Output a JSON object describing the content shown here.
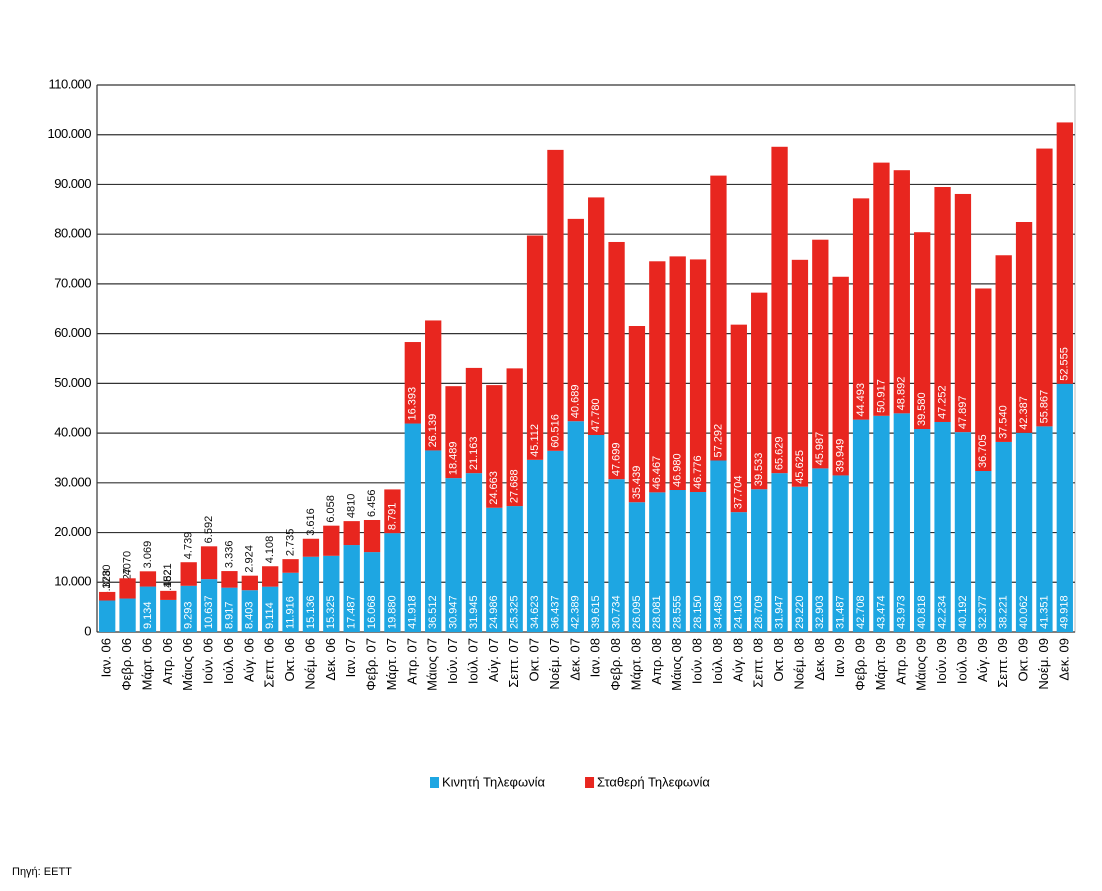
{
  "chart_data": {
    "type": "stacked_bar",
    "categories": [
      "Ιαν. 06",
      "Φεβρ. 06",
      "Μάρτ. 06",
      "Απρ. 06",
      "Μάιος 06",
      "Ιούν. 06",
      "Ιούλ. 06",
      "Αύγ. 06",
      "Σεπτ. 06",
      "Οκτ. 06",
      "Νοέμ. 06",
      "Δεκ. 06",
      "Ιαν. 07",
      "Φεβρ. 07",
      "Μάρτ. 07",
      "Απρ. 07",
      "Μάιος 07",
      "Ιούν. 07",
      "Ιούλ. 07",
      "Αύγ. 07",
      "Σεπτ. 07",
      "Οκτ. 07",
      "Νοέμ. 07",
      "Δεκ. 07",
      "Ιαν. 08",
      "Φεβρ. 08",
      "Μάρτ. 08",
      "Απρ. 08",
      "Μάιος 08",
      "Ιούν. 08",
      "Ιούλ. 08",
      "Αύγ. 08",
      "Σεπτ. 08",
      "Οκτ. 08",
      "Νοέμ. 08",
      "Δεκ. 08",
      "Ιαν. 09",
      "Φεβρ. 09",
      "Μάρτ. 09",
      "Απρ. 09",
      "Μάιος 09",
      "Ιούν. 09",
      "Ιούλ. 09",
      "Αύγ. 09",
      "Σεπτ. 09",
      "Οκτ. 09",
      "Νοέμ. 09",
      "Δεκ. 09"
    ],
    "series": [
      {
        "name": "Κινητή Τηλεφωνία",
        "color": "#1ea6e2",
        "values": [
          6328,
          6727,
          9134,
          6452,
          9293,
          10637,
          8917,
          8403,
          9114,
          11916,
          15136,
          15325,
          17487,
          16068,
          19880,
          41918,
          36512,
          30947,
          31945,
          24986,
          25325,
          34623,
          36437,
          42389,
          39615,
          30734,
          26095,
          28081,
          28555,
          28150,
          34489,
          24103,
          28709,
          31947,
          29220,
          32903,
          31487,
          42708,
          43474,
          43973,
          40818,
          42234,
          40192,
          32377,
          38221,
          40062,
          41351,
          49918
        ],
        "value_labels": [
          "6.328",
          "6.727",
          "9.134",
          "6.452",
          "9.293",
          "10.637",
          "8.917",
          "8.403",
          "9.114",
          "11.916",
          "15.136",
          "15.325",
          "17.487",
          "16.068",
          "19.880",
          "41.918",
          "36.512",
          "30.947",
          "31.945",
          "24.986",
          "25.325",
          "34.623",
          "36.437",
          "42.389",
          "39.615",
          "30.734",
          "26.095",
          "28.081",
          "28.555",
          "28.150",
          "34.489",
          "24.103",
          "28.709",
          "31.947",
          "29.220",
          "32.903",
          "31.487",
          "42.708",
          "43.474",
          "43.973",
          "40.818",
          "42.234",
          "40.192",
          "32.377",
          "38.221",
          "40.062",
          "41.351",
          "49.918"
        ]
      },
      {
        "name": "Σταθερή Τηλεφωνία",
        "color": "#e8261f",
        "values": [
          1730,
          4070,
          3069,
          1821,
          4739,
          6592,
          3336,
          2924,
          4108,
          2735,
          3616,
          6058,
          4810,
          6456,
          8791,
          16393,
          26139,
          18489,
          21163,
          24663,
          27688,
          45112,
          60516,
          40689,
          47780,
          47699,
          35439,
          46467,
          46980,
          46776,
          57292,
          37704,
          39533,
          65629,
          45625,
          45987,
          39949,
          44493,
          50917,
          48892,
          39580,
          47252,
          47897,
          36705,
          37540,
          42387,
          55867,
          52555
        ],
        "value_labels": [
          "1730",
          "4070",
          "3.069",
          "1821",
          "4.739",
          "6.592",
          "3.336",
          "2.924",
          "4.108",
          "2.735",
          "3.616",
          "6.058",
          "4810",
          "6.456",
          "8.791",
          "16.393",
          "26.139",
          "18.489",
          "21.163",
          "24.663",
          "27.688",
          "45.112",
          "60.516",
          "40.689",
          "47.780",
          "47.699",
          "35.439",
          "46.467",
          "46.980",
          "46.776",
          "57.292",
          "37.704",
          "39.533",
          "65.629",
          "45.625",
          "45.987",
          "39.949",
          "44.493",
          "50.917",
          "48.892",
          "39.580",
          "47.252",
          "47.897",
          "36.705",
          "37.540",
          "42.387",
          "55.867",
          "52.555"
        ]
      }
    ],
    "ylim": [
      0,
      110000
    ],
    "yticks": [
      0,
      {
        "value": 10000,
        "label": "10.000"
      },
      {
        "value": 20000,
        "label": "20.000"
      },
      {
        "value": 30000,
        "label": "30.000"
      },
      {
        "value": 40000,
        "label": "40.000"
      },
      {
        "value": 50000,
        "label": "50.000"
      },
      {
        "value": 60000,
        "label": "60.000"
      },
      {
        "value": 70000,
        "label": "70.000"
      },
      {
        "value": 80000,
        "label": "80.000"
      },
      {
        "value": 90000,
        "label": "90.000"
      },
      {
        "value": 100000,
        "label": "100.000"
      },
      {
        "value": 110000,
        "label": "110.000"
      }
    ],
    "grid": true,
    "source": "Πηγή: ΕΕΤΤ"
  }
}
